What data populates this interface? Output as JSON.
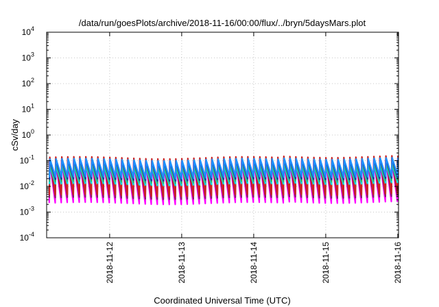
{
  "chart_data": {
    "type": "line",
    "title": "/data/run/goesPlots/archive/2018-11-16/00:00/flux/../bryn/5daysMars.plot",
    "xlabel": "Coordinated Universal Time (UTC)",
    "ylabel": "cSv/day",
    "y_scale": "log",
    "ylim": [
      0.0001,
      10000
    ],
    "y_ticks": [
      {
        "base": "10",
        "exp": "-4",
        "value": 0.0001
      },
      {
        "base": "10",
        "exp": "-3",
        "value": 0.001
      },
      {
        "base": "10",
        "exp": "-2",
        "value": 0.01
      },
      {
        "base": "10",
        "exp": "-1",
        "value": 0.1
      },
      {
        "base": "10",
        "exp": "0",
        "value": 1
      },
      {
        "base": "10",
        "exp": "1",
        "value": 10
      },
      {
        "base": "10",
        "exp": "2",
        "value": 100
      },
      {
        "base": "10",
        "exp": "3",
        "value": 1000
      },
      {
        "base": "10",
        "exp": "4",
        "value": 10000
      }
    ],
    "xlim": [
      "2018-11-11T03:00",
      "2018-11-16T00:15"
    ],
    "x_ticks": [
      "2018-11-12",
      "2018-11-13",
      "2018-11-14",
      "2018-11-15",
      "2018-11-16"
    ],
    "grid": true,
    "sawtooth_period_hours": 2,
    "series": [
      {
        "color": "#ff00ff",
        "peak": 0.095,
        "trough": 0.0022
      },
      {
        "color": "#8b1a6b",
        "peak": 0.11,
        "trough": 0.0035
      },
      {
        "color": "#cc2222",
        "peak": 0.13,
        "trough": 0.0045
      },
      {
        "color": "#00e0e0",
        "peak": 0.06,
        "trough": 0.012
      },
      {
        "color": "#3cb371",
        "peak": 0.07,
        "trough": 0.015
      },
      {
        "color": "#1e3aa8",
        "peak": 0.1,
        "trough": 0.018
      },
      {
        "color": "#1e90ff",
        "peak": 0.11,
        "trough": 0.022
      }
    ]
  }
}
